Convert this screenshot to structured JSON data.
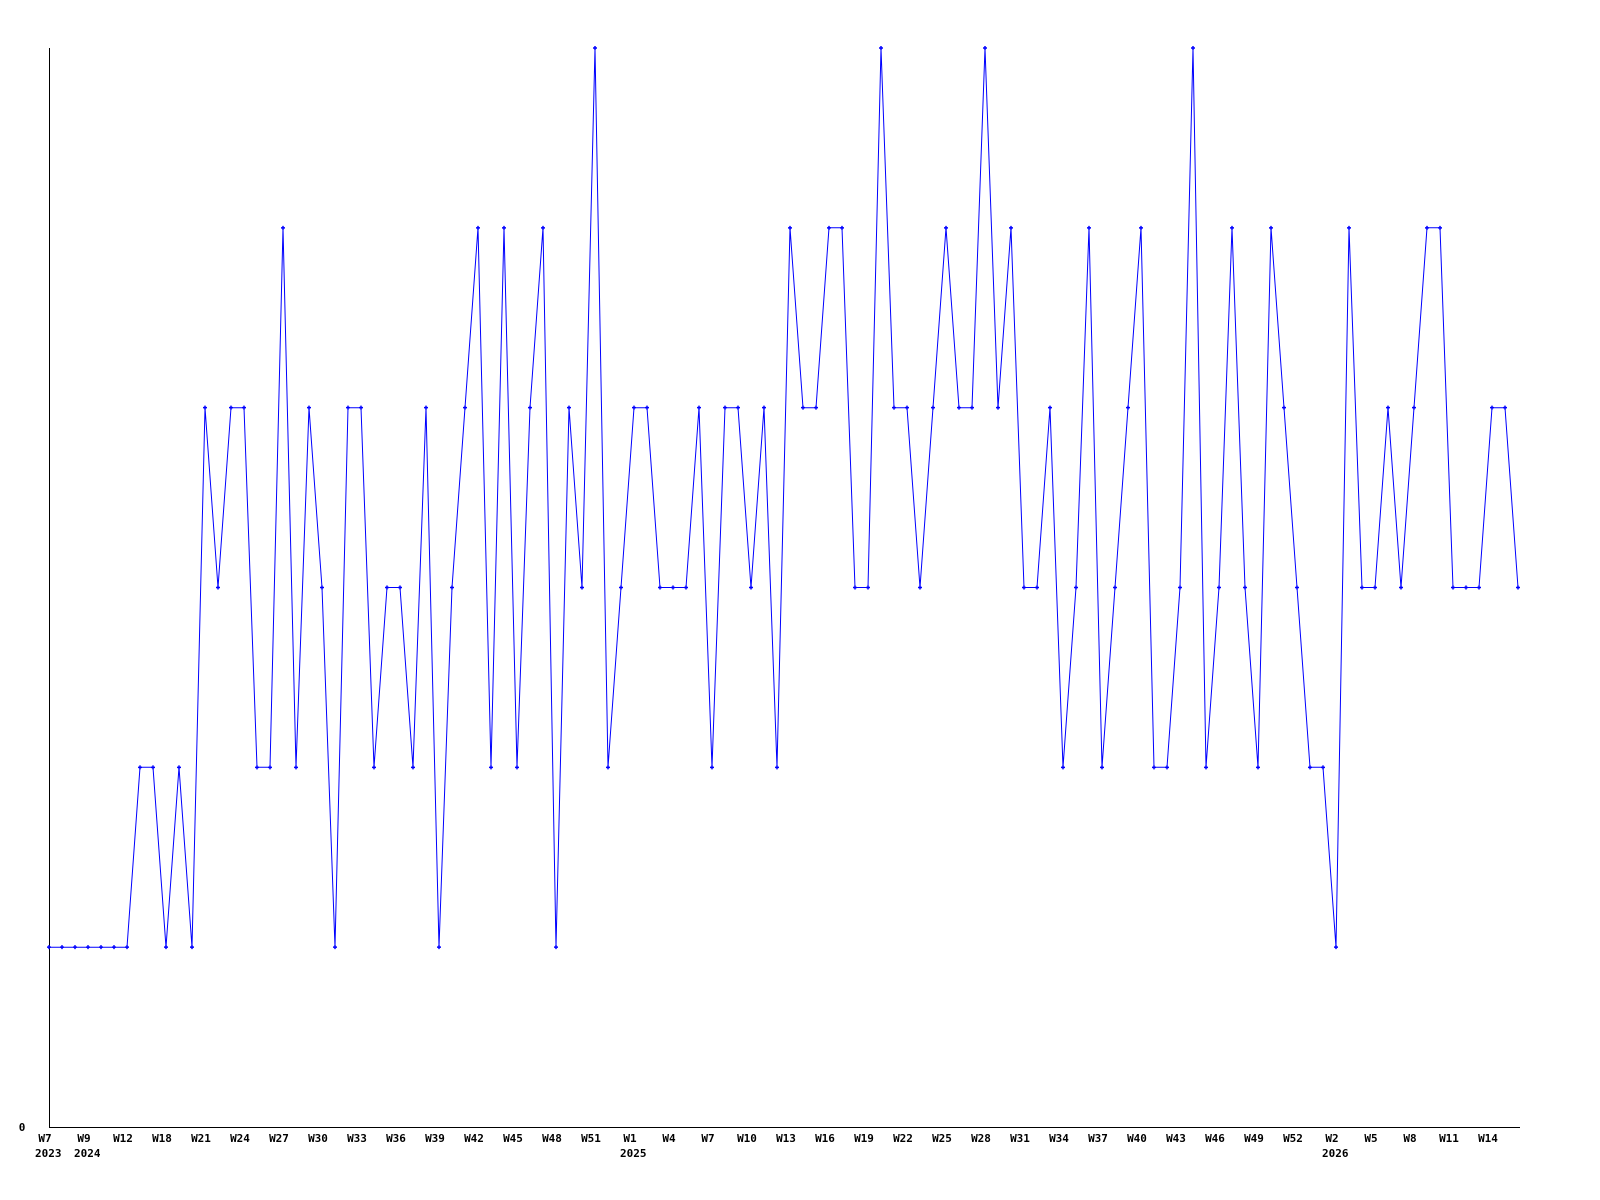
{
  "chart_data": {
    "type": "line",
    "title": "",
    "xlabel": "",
    "ylabel": "",
    "y_tick_labels": [
      "0"
    ],
    "ylim": [
      0,
      6
    ],
    "grid": false,
    "line_color": "#0000ff",
    "axis_color": "#000000",
    "x_tick_labels": [
      "W7",
      "W9",
      "W12",
      "W18",
      "W21",
      "W24",
      "W27",
      "W30",
      "W33",
      "W36",
      "W39",
      "W42",
      "W45",
      "W48",
      "W51",
      "W1",
      "W4",
      "W7",
      "W10",
      "W13",
      "W16",
      "W19",
      "W22",
      "W25",
      "W28",
      "W31",
      "W34",
      "W37",
      "W40",
      "W43",
      "W46",
      "W49",
      "W52",
      "W2",
      "W5",
      "W8",
      "W11",
      "W14"
    ],
    "x_year_labels": [
      {
        "tick_index": 0,
        "label": "2023"
      },
      {
        "tick_index": 1,
        "label": "2024"
      },
      {
        "tick_index": 15,
        "label": "2025"
      },
      {
        "tick_index": 33,
        "label": "2026"
      }
    ],
    "points_per_tick": 3,
    "series": [
      {
        "values": [
          1,
          1,
          1,
          1,
          1,
          1,
          1,
          2,
          2,
          1,
          2,
          1,
          4,
          3,
          4,
          4,
          2,
          2,
          5,
          2,
          4,
          3,
          1,
          4,
          4,
          2,
          3,
          3,
          2,
          4,
          1,
          3,
          4,
          5,
          2,
          5,
          2,
          4,
          5,
          1,
          4,
          3,
          6,
          2,
          3,
          4,
          4,
          3,
          3,
          3,
          4,
          2,
          4,
          4,
          3,
          4,
          2,
          5,
          4,
          4,
          5,
          5,
          3,
          3,
          6,
          4,
          4,
          3,
          4,
          5,
          4,
          4,
          6,
          4,
          5,
          3,
          3,
          4,
          2,
          3,
          5,
          2,
          3,
          4,
          5,
          2,
          2,
          3,
          6,
          2,
          3,
          5,
          3,
          2,
          5,
          4,
          3,
          2,
          2,
          1,
          5,
          3,
          3,
          4,
          3,
          4,
          5,
          5,
          3,
          3,
          3,
          4,
          4,
          3
        ]
      }
    ]
  }
}
